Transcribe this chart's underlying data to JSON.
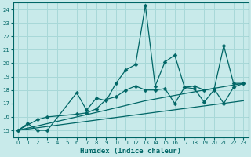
{
  "xlabel": "Humidex (Indice chaleur)",
  "bg_color": "#c8eaea",
  "grid_color": "#a8d8d8",
  "line_color": "#006666",
  "xlim": [
    -0.5,
    23.5
  ],
  "ylim": [
    14.5,
    24.5
  ],
  "xticks": [
    0,
    1,
    2,
    3,
    4,
    5,
    6,
    7,
    8,
    9,
    10,
    11,
    12,
    13,
    14,
    15,
    16,
    17,
    18,
    19,
    20,
    21,
    22,
    23
  ],
  "yticks": [
    15,
    16,
    17,
    18,
    19,
    20,
    21,
    22,
    23,
    24
  ],
  "series1": {
    "points": [
      [
        0,
        15.0
      ],
      [
        1,
        15.5
      ],
      [
        2,
        15.0
      ],
      [
        3,
        15.0
      ],
      [
        6,
        17.8
      ],
      [
        7,
        16.5
      ],
      [
        8,
        17.4
      ],
      [
        9,
        17.2
      ],
      [
        10,
        18.5
      ],
      [
        11,
        19.5
      ],
      [
        12,
        19.9
      ],
      [
        13,
        24.3
      ],
      [
        14,
        18.3
      ],
      [
        15,
        20.1
      ],
      [
        16,
        20.6
      ],
      [
        17,
        18.2
      ],
      [
        18,
        18.1
      ],
      [
        19,
        17.1
      ],
      [
        20,
        18.0
      ],
      [
        21,
        21.3
      ],
      [
        22,
        18.5
      ],
      [
        23,
        18.5
      ]
    ]
  },
  "series2": {
    "points": [
      [
        0,
        15.0
      ],
      [
        2,
        15.8
      ],
      [
        3,
        16.0
      ],
      [
        6,
        16.2
      ],
      [
        7,
        16.3
      ],
      [
        8,
        16.6
      ],
      [
        9,
        17.3
      ],
      [
        10,
        17.5
      ],
      [
        11,
        18.0
      ],
      [
        12,
        18.3
      ],
      [
        13,
        18.0
      ],
      [
        14,
        18.0
      ],
      [
        15,
        18.1
      ],
      [
        16,
        17.0
      ],
      [
        17,
        18.2
      ],
      [
        18,
        18.3
      ],
      [
        19,
        18.0
      ],
      [
        20,
        18.1
      ],
      [
        21,
        17.0
      ],
      [
        22,
        18.2
      ],
      [
        23,
        18.5
      ]
    ]
  },
  "series3": {
    "points": [
      [
        0,
        15.0
      ],
      [
        3,
        15.5
      ],
      [
        6,
        16.0
      ],
      [
        9,
        16.5
      ],
      [
        13,
        17.2
      ],
      [
        16,
        17.6
      ],
      [
        19,
        18.0
      ],
      [
        23,
        18.5
      ]
    ]
  },
  "series4": {
    "points": [
      [
        0,
        15.0
      ],
      [
        23,
        17.2
      ]
    ]
  }
}
